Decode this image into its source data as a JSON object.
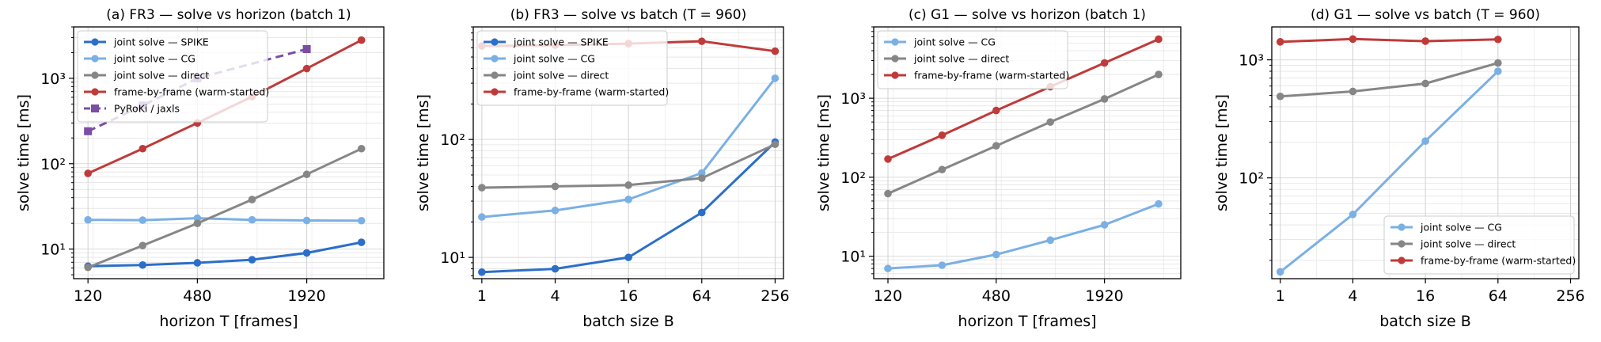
{
  "colors": {
    "spike": "#2b6fc9",
    "cg": "#7ab0e4",
    "direct": "#868686",
    "frame": "#c03a3a",
    "pyroki": "#7b4ea4"
  },
  "chart_data": [
    {
      "type": "line",
      "title": "(a) FR3 — solve vs horizon (batch 1)",
      "xlabel": "horizon T [frames]",
      "ylabel": "solve time [ms]",
      "xscale": "log2",
      "yscale": "log10",
      "xlim": [
        100,
        5100
      ],
      "ylim": [
        4.5,
        4000
      ],
      "xticks": [
        120,
        480,
        1920
      ],
      "xtick_labels": [
        "120",
        "480",
        "1920"
      ],
      "yticks": [
        10,
        100,
        1000
      ],
      "ytick_labels": [
        "10¹",
        "10²",
        "10³"
      ],
      "x": [
        120,
        240,
        480,
        960,
        1920,
        3840
      ],
      "grid": true,
      "legend_position": "top-left",
      "series": [
        {
          "name": "joint solve — SPIKE",
          "color_key": "spike",
          "marker": "circle",
          "dashed": false,
          "values": [
            6.3,
            6.5,
            6.9,
            7.5,
            9.0,
            12
          ]
        },
        {
          "name": "joint solve — CG",
          "color_key": "cg",
          "marker": "circle",
          "dashed": false,
          "values": [
            22,
            21.8,
            23,
            22,
            21.6,
            21.5
          ]
        },
        {
          "name": "joint solve — direct",
          "color_key": "direct",
          "marker": "circle",
          "dashed": false,
          "values": [
            6.1,
            11,
            20,
            38,
            75,
            150
          ]
        },
        {
          "name": "frame-by-frame (warm-started)",
          "color_key": "frame",
          "marker": "circle",
          "dashed": false,
          "values": [
            77,
            150,
            300,
            610,
            1300,
            2800
          ]
        },
        {
          "name": "PyRoKi / jaxls",
          "color_key": "pyroki",
          "marker": "square",
          "dashed": true,
          "values": [
            240,
            480,
            1000,
            null,
            2200,
            null
          ]
        }
      ]
    },
    {
      "type": "line",
      "title": "(b) FR3 — solve vs batch (T = 960)",
      "xlabel": "batch size B",
      "ylabel": "solve time [ms]",
      "xscale": "log2",
      "yscale": "log10",
      "xlim": [
        0.85,
        300
      ],
      "ylim": [
        6.6,
        900
      ],
      "xticks": [
        1,
        4,
        16,
        64,
        256
      ],
      "xtick_labels": [
        "1",
        "4",
        "16",
        "64",
        "256"
      ],
      "yticks": [
        10,
        100
      ],
      "ytick_labels": [
        "10¹",
        "10²"
      ],
      "x": [
        1,
        4,
        16,
        64,
        256
      ],
      "grid": true,
      "legend_position": "top-left",
      "series": [
        {
          "name": "joint solve — SPIKE",
          "color_key": "spike",
          "marker": "circle",
          "dashed": false,
          "values": [
            7.5,
            8.0,
            10,
            24,
            95
          ]
        },
        {
          "name": "joint solve — CG",
          "color_key": "cg",
          "marker": "circle",
          "dashed": false,
          "values": [
            22,
            25,
            31,
            52,
            330
          ]
        },
        {
          "name": "joint solve — direct",
          "color_key": "direct",
          "marker": "circle",
          "dashed": false,
          "values": [
            39,
            40,
            41,
            47,
            91
          ]
        },
        {
          "name": "frame-by-frame (warm-started)",
          "color_key": "frame",
          "marker": "circle",
          "dashed": false,
          "values": [
            620,
            630,
            650,
            680,
            560
          ]
        }
      ]
    },
    {
      "type": "line",
      "title": "(c) G1 — solve vs horizon (batch 1)",
      "xlabel": "horizon T [frames]",
      "ylabel": "solve time [ms]",
      "xscale": "log2",
      "yscale": "log10",
      "xlim": [
        100,
        5100
      ],
      "ylim": [
        5.2,
        8000
      ],
      "xticks": [
        120,
        480,
        1920
      ],
      "xtick_labels": [
        "120",
        "480",
        "1920"
      ],
      "yticks": [
        10,
        100,
        1000
      ],
      "ytick_labels": [
        "10¹",
        "10²",
        "10³"
      ],
      "x": [
        120,
        240,
        480,
        960,
        1920,
        3840
      ],
      "grid": true,
      "legend_position": "top-left",
      "series": [
        {
          "name": "joint solve — CG",
          "color_key": "cg",
          "marker": "circle",
          "dashed": false,
          "values": [
            7.0,
            7.7,
            10.5,
            16,
            25,
            46
          ]
        },
        {
          "name": "joint solve — direct",
          "color_key": "direct",
          "marker": "circle",
          "dashed": false,
          "values": [
            62,
            125,
            250,
            500,
            980,
            2000
          ]
        },
        {
          "name": "frame-by-frame (warm-started)",
          "color_key": "frame",
          "marker": "circle",
          "dashed": false,
          "values": [
            170,
            340,
            700,
            1400,
            2800,
            5600
          ]
        }
      ]
    },
    {
      "type": "line",
      "title": "(d) G1 — solve vs batch (T = 960)",
      "xlabel": "batch size B",
      "ylabel": "solve time [ms]",
      "xscale": "log2",
      "yscale": "log10",
      "xlim": [
        0.85,
        300
      ],
      "ylim": [
        14,
        1900
      ],
      "xticks": [
        1,
        4,
        16,
        64,
        256
      ],
      "xtick_labels": [
        "1",
        "4",
        "16",
        "64",
        "256"
      ],
      "yticks": [
        100,
        1000
      ],
      "ytick_labels": [
        "10²",
        "10³"
      ],
      "x": [
        1,
        4,
        16,
        64
      ],
      "grid": true,
      "legend_position": "bottom-right",
      "series": [
        {
          "name": "joint solve — CG",
          "color_key": "cg",
          "marker": "circle",
          "dashed": false,
          "values": [
            16,
            49,
            205,
            800
          ]
        },
        {
          "name": "joint solve — direct",
          "color_key": "direct",
          "marker": "circle",
          "dashed": false,
          "values": [
            490,
            540,
            630,
            940
          ]
        },
        {
          "name": "frame-by-frame (warm-started)",
          "color_key": "frame",
          "marker": "circle",
          "dashed": false,
          "values": [
            1420,
            1500,
            1440,
            1490
          ]
        }
      ]
    }
  ]
}
